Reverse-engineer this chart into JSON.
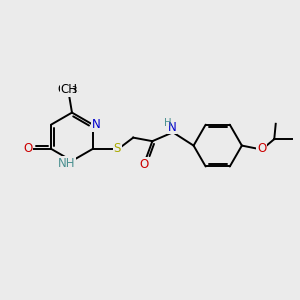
{
  "background_color": "#ebebeb",
  "figsize": [
    3.0,
    3.0
  ],
  "dpi": 100,
  "colors": {
    "C": "#000000",
    "N": "#0000cc",
    "O": "#cc0000",
    "S": "#aaaa00",
    "NH": "#4a9090",
    "bond": "#000000"
  },
  "bond_lw": 1.4,
  "font_size": 8.5
}
